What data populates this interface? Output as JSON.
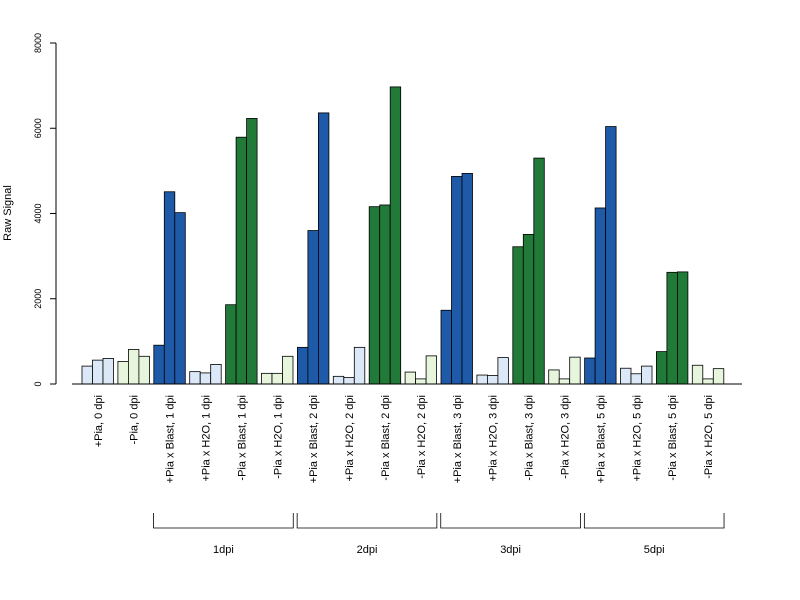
{
  "chart_data": {
    "type": "bar",
    "ylabel": "Raw Signal",
    "ylim": [
      0,
      8000
    ],
    "yticks": [
      0,
      2000,
      4000,
      6000,
      8000
    ],
    "ytick_labels": [
      "0",
      "2000",
      "4000",
      "6000",
      "8000"
    ],
    "grid": false,
    "legend": "none",
    "colors": {
      "plus_blast": "#1f5aa8",
      "minus_blast": "#217a38",
      "plus_control": "#dbe8f7",
      "minus_control": "#e6f5dc",
      "outline": "#000000"
    },
    "categories": [
      {
        "label": "+Pia, 0 dpi",
        "color": "plus_control",
        "values": [
          420,
          560,
          600
        ]
      },
      {
        "label": "-Pia, 0 dpi",
        "color": "minus_control",
        "values": [
          530,
          810,
          650
        ]
      },
      {
        "label": "+Pia x Blast, 1 dpi",
        "color": "plus_blast",
        "values": [
          910,
          4510,
          4020
        ]
      },
      {
        "label": "+Pia x H2O, 1 dpi",
        "color": "plus_control",
        "values": [
          290,
          260,
          460
        ]
      },
      {
        "label": "-Pia x Blast, 1 dpi",
        "color": "minus_blast",
        "values": [
          1860,
          5790,
          6230
        ]
      },
      {
        "label": "-Pia x H2O, 1 dpi",
        "color": "minus_control",
        "values": [
          250,
          250,
          650
        ]
      },
      {
        "label": "+Pia x Blast, 2 dpi",
        "color": "plus_blast",
        "values": [
          860,
          3600,
          6360
        ]
      },
      {
        "label": "+Pia x H2O, 2 dpi",
        "color": "plus_control",
        "values": [
          180,
          150,
          860
        ]
      },
      {
        "label": "-Pia x Blast, 2 dpi",
        "color": "minus_blast",
        "values": [
          4160,
          4200,
          6970
        ]
      },
      {
        "label": "-Pia x H2O, 2 dpi",
        "color": "minus_control",
        "values": [
          280,
          120,
          660
        ]
      },
      {
        "label": "+Pia x Blast, 3 dpi",
        "color": "plus_blast",
        "values": [
          1730,
          4870,
          4940
        ]
      },
      {
        "label": "+Pia x H2O, 3 dpi",
        "color": "plus_control",
        "values": [
          210,
          200,
          620
        ]
      },
      {
        "label": "-Pia x Blast, 3 dpi",
        "color": "minus_blast",
        "values": [
          3220,
          3510,
          5300
        ]
      },
      {
        "label": "-Pia x H2O, 3 dpi",
        "color": "minus_control",
        "values": [
          330,
          120,
          630
        ]
      },
      {
        "label": "+Pia x Blast, 5 dpi",
        "color": "plus_blast",
        "values": [
          610,
          4130,
          6040
        ]
      },
      {
        "label": "+Pia x H2O, 5 dpi",
        "color": "plus_control",
        "values": [
          370,
          240,
          420
        ]
      },
      {
        "label": "-Pia x Blast, 5 dpi",
        "color": "minus_blast",
        "values": [
          760,
          2620,
          2630
        ]
      },
      {
        "label": "-Pia x H2O, 5 dpi",
        "color": "minus_control",
        "values": [
          440,
          120,
          360
        ]
      }
    ],
    "groups": [
      {
        "label": "1dpi",
        "from": 2,
        "to": 5
      },
      {
        "label": "2dpi",
        "from": 6,
        "to": 9
      },
      {
        "label": "3dpi",
        "from": 10,
        "to": 13
      },
      {
        "label": "5dpi",
        "from": 14,
        "to": 17
      }
    ]
  }
}
